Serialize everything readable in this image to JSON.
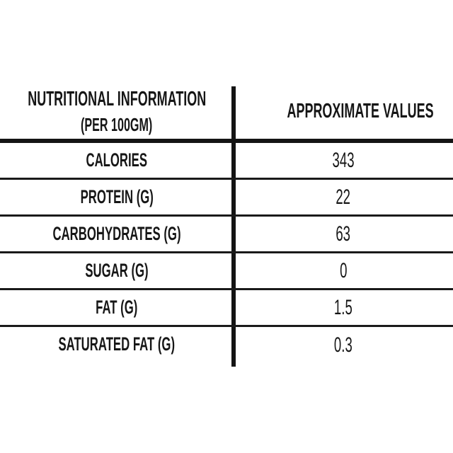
{
  "page": {
    "background": "#ffffff"
  },
  "table": {
    "header": {
      "left_title": "NUTRITIONAL INFORMATION",
      "left_subtitle": "(PER 100GM)",
      "right_title": "APPROXIMATE VALUES"
    },
    "rows": [
      {
        "label": "CALORIES",
        "value": "343"
      },
      {
        "label": "PROTEIN (G)",
        "value": "22"
      },
      {
        "label": "CARBOHYDRATES (G)",
        "value": "63"
      },
      {
        "label": "SUGAR (G)",
        "value": "0"
      },
      {
        "label": "FAT (G)",
        "value": "1.5"
      },
      {
        "label": "SATURATED FAT (G)",
        "value": "0.3"
      }
    ],
    "colors": {
      "text": "#161616",
      "line": "#141414",
      "background": "#ffffff"
    }
  }
}
